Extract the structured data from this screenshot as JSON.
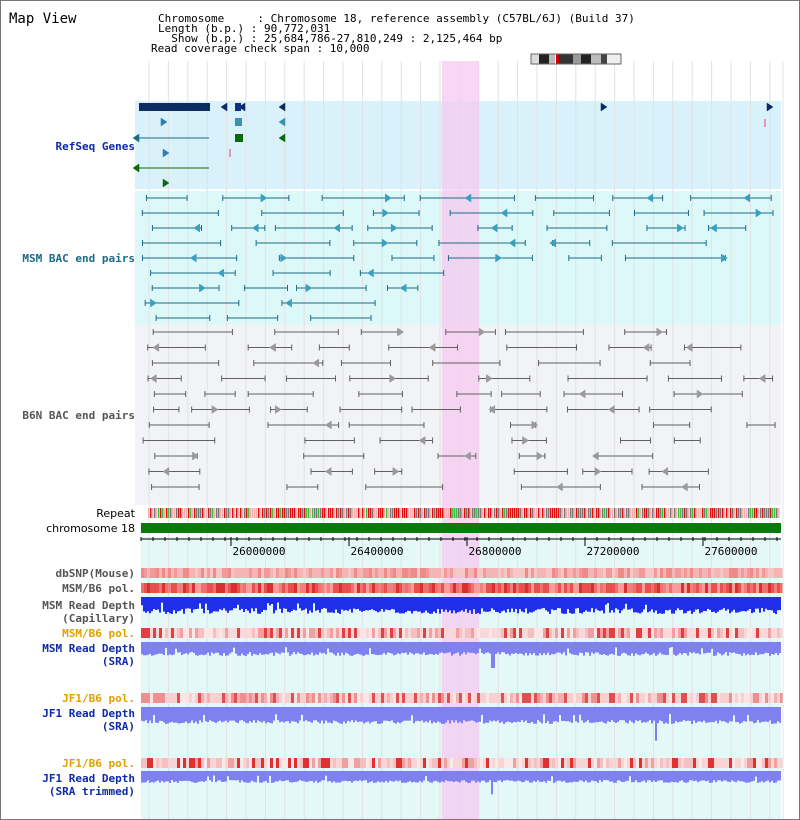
{
  "title": "Map View",
  "info": {
    "line1": "Chromosome     : Chromosome 18, reference assembly (C57BL/6J) (Build 37)",
    "line2": "Length (b.p.) : 90,772,031",
    "line3": "  Show (b.p.) : 25,684,786-27,810,249 : 2,125,464 bp",
    "line4": "Read coverage check span : 10,000"
  },
  "tracks": {
    "refseq": "RefSeq Genes",
    "msm_bac": "MSM BAC end pairs",
    "b6n_bac": "B6N BAC end pairs",
    "repeat": "Repeat",
    "chromosome": "chromosome 18",
    "dbsnp": "dbSNP(Mouse)",
    "msm_b6_pol_1": "MSM/B6 pol.",
    "msm_read_depth_cap_1": "MSM Read Depth",
    "msm_read_depth_cap_2": "(Capillary)",
    "msm_b6_pol_2": "MSM/B6 pol.",
    "msm_read_depth_sra_1": "MSM Read Depth",
    "msm_read_depth_sra_2": "(SRA)",
    "jf1_b6_pol_1": "JF1/B6 pol.",
    "jf1_read_depth_sra_1": "JF1 Read Depth",
    "jf1_read_depth_sra_2": "(SRA)",
    "jf1_b6_pol_2": "JF1/B6 pol.",
    "jf1_read_depth_trim_1": "JF1 Read Depth",
    "jf1_read_depth_trim_2": "(SRA trimmed)"
  },
  "axis_ticks": [
    "26000000",
    "26400000",
    "26800000",
    "27200000",
    "27600000"
  ],
  "colors": {
    "refseq_band": "#d9f1fb",
    "msm_band": "#ddf8f8",
    "b6n_band": "#f2f3f7",
    "coverage_band": "#e4f8f8",
    "highlight": "#f5c9f0",
    "refseq_feature": "#0b2b63",
    "msm_feature": "#1c6d86",
    "b6n_feature": "#606060",
    "chromosome_bar": "#0a7a0a",
    "depth_capillary": "#1f2ee8",
    "depth_sra": "#8080f0"
  },
  "icons": [
    "chromosome-ideogram-icon"
  ]
}
